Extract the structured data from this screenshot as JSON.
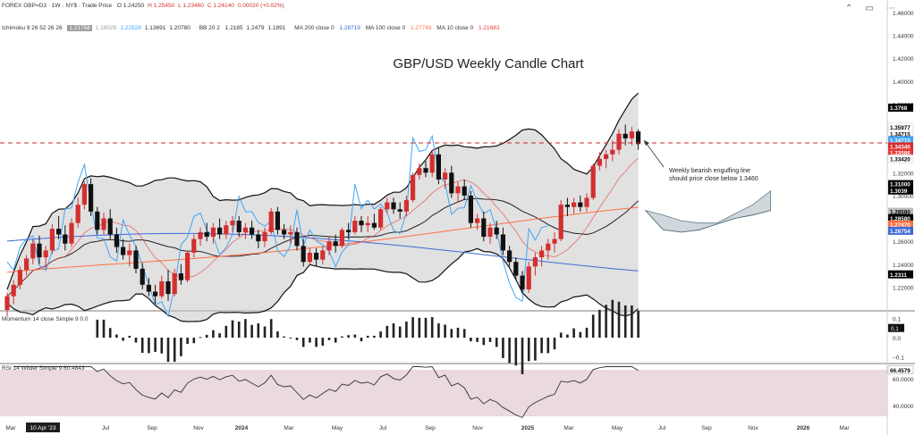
{
  "header": {
    "symbol": "FOREX GBP=D3 · 1W · NY$ · Trade Price",
    "ohlc": [
      {
        "k": "O",
        "v": "1.24250"
      },
      {
        "k": "H",
        "v": "1.25450"
      },
      {
        "k": "L",
        "v": "1.23460"
      },
      {
        "k": "C",
        "v": "1.24140"
      },
      {
        "k": "",
        "v": "0.00020 (+0.02%)"
      }
    ],
    "indicator_label": "Ichimoku 9 26 52 26 26",
    "ichimoku_values": [
      {
        "v": "1.21758",
        "c": "#ffffff",
        "bg": "#9e9e9e"
      },
      {
        "v": "1.18025",
        "c": "#9e9e9e"
      },
      {
        "v": "1.22528",
        "c": "#42a5f5"
      },
      {
        "v": "1.13691",
        "c": "#333333"
      },
      {
        "v": "1.20780",
        "c": "#333333"
      }
    ],
    "bb_label": "BB 20 2",
    "bb_values": [
      "1.2185",
      "1.2479",
      "1.1891"
    ],
    "ma200_label": "MA 200 close 0",
    "ma200_value": "1.28719",
    "ma100_label": "MA 100 close 0",
    "ma100_value": "1.27748",
    "ma10_label": "MA 10 close 0",
    "ma10_value": "1.21683"
  },
  "toolbar": {
    "minimize_icon": "chevron-up-icon",
    "window_icon": "window-icon",
    "more_icon": "more-icon"
  },
  "chart_data": [
    {
      "type": "candlestick",
      "title": "GBP/USD Weekly Candle Chart",
      "annotation": "Weekly bearish engulfing line\nshould price close below 1.3460",
      "ylim": [
        1.2,
        1.46
      ],
      "y_ticks": [
        "1.46000",
        "1.44000",
        "1.42000",
        "1.40000",
        "1.38000",
        "1.36000",
        "1.34000",
        "1.32000",
        "1.30000",
        "1.28000",
        "1.26000",
        "1.24000",
        "1.22000"
      ],
      "resistance_level": 1.346,
      "x_ticks": [
        "Mar",
        "10 Apr '23",
        "Jul",
        "Sep",
        "Nov",
        "2024",
        "Mar",
        "May",
        "Jul",
        "Sep",
        "Nov",
        "2025",
        "Mar",
        "May",
        "Jul",
        "Sep",
        "Nov",
        "2026",
        "Mar"
      ],
      "price_labels": [
        {
          "text": "1.3768",
          "v": 1.3768,
          "bg": "#000000",
          "fg": "#ffffff"
        },
        {
          "text": "1.35977",
          "v": 1.3598,
          "bg": "#ffffff",
          "fg": "#000000"
        },
        {
          "text": "1.34715",
          "v": 1.354,
          "bg": "#ffffff",
          "fg": "#000000"
        },
        {
          "text": "1.34715",
          "v": 1.3485,
          "bg": "#42a5f5",
          "fg": "#ffffff"
        },
        {
          "text": "1.34340",
          "v": 1.343,
          "bg": "#d32f2f",
          "fg": "#ffffff"
        },
        {
          "text": "1.33586",
          "v": 1.3375,
          "bg": "#e53935",
          "fg": "#ffffff"
        },
        {
          "text": "1.33420",
          "v": 1.332,
          "bg": "#ffffff",
          "fg": "#000000"
        },
        {
          "text": "1.31000",
          "v": 1.31,
          "bg": "#000000",
          "fg": "#ffffff"
        },
        {
          "text": "1.3039",
          "v": 1.3045,
          "bg": "#000000",
          "fg": "#ffffff"
        },
        {
          "text": "1.28580",
          "v": 1.2858,
          "bg": "#bdbdbd",
          "fg": "#000000"
        },
        {
          "text": "1.28580",
          "v": 1.2803,
          "bg": "#000000",
          "fg": "#ffffff"
        },
        {
          "text": "1.27470",
          "v": 1.2747,
          "bg": "#ff7043",
          "fg": "#ffffff"
        },
        {
          "text": "1.26754",
          "v": 1.2692,
          "bg": "#3f6ad8",
          "fg": "#ffffff"
        },
        {
          "text": "1.2311",
          "v": 1.2311,
          "bg": "#000000",
          "fg": "#ffffff"
        }
      ],
      "candles": [
        [
          1.2,
          1.215,
          1.194,
          1.212
        ],
        [
          1.212,
          1.226,
          1.205,
          1.222
        ],
        [
          1.222,
          1.238,
          1.218,
          1.235
        ],
        [
          1.235,
          1.248,
          1.23,
          1.245
        ],
        [
          1.245,
          1.262,
          1.24,
          1.258
        ],
        [
          1.258,
          1.265,
          1.24,
          1.246
        ],
        [
          1.246,
          1.256,
          1.236,
          1.252
        ],
        [
          1.252,
          1.275,
          1.249,
          1.271
        ],
        [
          1.271,
          1.282,
          1.262,
          1.266
        ],
        [
          1.266,
          1.274,
          1.252,
          1.258
        ],
        [
          1.258,
          1.28,
          1.255,
          1.276
        ],
        [
          1.276,
          1.298,
          1.272,
          1.292
        ],
        [
          1.292,
          1.312,
          1.288,
          1.31
        ],
        [
          1.31,
          1.315,
          1.282,
          1.286
        ],
        [
          1.286,
          1.29,
          1.266,
          1.27
        ],
        [
          1.27,
          1.285,
          1.266,
          1.28
        ],
        [
          1.28,
          1.288,
          1.262,
          1.266
        ],
        [
          1.266,
          1.272,
          1.25,
          1.255
        ],
        [
          1.255,
          1.262,
          1.244,
          1.248
        ],
        [
          1.248,
          1.258,
          1.238,
          1.252
        ],
        [
          1.252,
          1.256,
          1.232,
          1.236
        ],
        [
          1.236,
          1.241,
          1.218,
          1.222
        ],
        [
          1.222,
          1.228,
          1.212,
          1.216
        ],
        [
          1.216,
          1.222,
          1.205,
          1.212
        ],
        [
          1.212,
          1.23,
          1.21,
          1.225
        ],
        [
          1.225,
          1.235,
          1.208,
          1.214
        ],
        [
          1.214,
          1.236,
          1.212,
          1.232
        ],
        [
          1.232,
          1.24,
          1.222,
          1.226
        ],
        [
          1.226,
          1.252,
          1.224,
          1.25
        ],
        [
          1.25,
          1.266,
          1.246,
          1.262
        ],
        [
          1.262,
          1.272,
          1.256,
          1.268
        ],
        [
          1.268,
          1.276,
          1.26,
          1.264
        ],
        [
          1.264,
          1.276,
          1.258,
          1.272
        ],
        [
          1.272,
          1.28,
          1.262,
          1.266
        ],
        [
          1.266,
          1.278,
          1.262,
          1.274
        ],
        [
          1.274,
          1.282,
          1.268,
          1.278
        ],
        [
          1.278,
          1.282,
          1.264,
          1.268
        ],
        [
          1.268,
          1.276,
          1.262,
          1.272
        ],
        [
          1.272,
          1.278,
          1.262,
          1.266
        ],
        [
          1.266,
          1.27,
          1.254,
          1.26
        ],
        [
          1.26,
          1.272,
          1.255,
          1.268
        ],
        [
          1.268,
          1.289,
          1.266,
          1.286
        ],
        [
          1.286,
          1.29,
          1.266,
          1.27
        ],
        [
          1.27,
          1.275,
          1.262,
          1.266
        ],
        [
          1.266,
          1.274,
          1.258,
          1.268
        ],
        [
          1.268,
          1.272,
          1.252,
          1.256
        ],
        [
          1.256,
          1.262,
          1.238,
          1.242
        ],
        [
          1.242,
          1.254,
          1.24,
          1.25
        ],
        [
          1.25,
          1.254,
          1.238,
          1.244
        ],
        [
          1.244,
          1.256,
          1.24,
          1.252
        ],
        [
          1.252,
          1.264,
          1.248,
          1.26
        ],
        [
          1.26,
          1.266,
          1.25,
          1.256
        ],
        [
          1.256,
          1.272,
          1.254,
          1.27
        ],
        [
          1.27,
          1.276,
          1.262,
          1.268
        ],
        [
          1.268,
          1.282,
          1.266,
          1.278
        ],
        [
          1.278,
          1.282,
          1.268,
          1.274
        ],
        [
          1.274,
          1.282,
          1.268,
          1.276
        ],
        [
          1.276,
          1.284,
          1.27,
          1.272
        ],
        [
          1.272,
          1.29,
          1.27,
          1.288
        ],
        [
          1.288,
          1.298,
          1.284,
          1.294
        ],
        [
          1.294,
          1.298,
          1.284,
          1.288
        ],
        [
          1.288,
          1.294,
          1.28,
          1.286
        ],
        [
          1.286,
          1.3,
          1.282,
          1.296
        ],
        [
          1.296,
          1.32,
          1.294,
          1.318
        ],
        [
          1.318,
          1.328,
          1.314,
          1.324
        ],
        [
          1.324,
          1.33,
          1.316,
          1.32
        ],
        [
          1.32,
          1.34,
          1.316,
          1.336
        ],
        [
          1.336,
          1.342,
          1.31,
          1.314
        ],
        [
          1.314,
          1.324,
          1.306,
          1.32
        ],
        [
          1.32,
          1.326,
          1.298,
          1.302
        ],
        [
          1.302,
          1.312,
          1.294,
          1.308
        ],
        [
          1.308,
          1.314,
          1.296,
          1.3
        ],
        [
          1.3,
          1.304,
          1.272,
          1.276
        ],
        [
          1.276,
          1.284,
          1.27,
          1.28
        ],
        [
          1.28,
          1.286,
          1.26,
          1.264
        ],
        [
          1.264,
          1.276,
          1.258,
          1.272
        ],
        [
          1.272,
          1.278,
          1.262,
          1.266
        ],
        [
          1.266,
          1.272,
          1.248,
          1.252
        ],
        [
          1.252,
          1.256,
          1.238,
          1.242
        ],
        [
          1.242,
          1.246,
          1.226,
          1.23
        ],
        [
          1.23,
          1.234,
          1.214,
          1.218
        ],
        [
          1.218,
          1.242,
          1.215,
          1.238
        ],
        [
          1.238,
          1.25,
          1.23,
          1.246
        ],
        [
          1.246,
          1.256,
          1.238,
          1.252
        ],
        [
          1.252,
          1.262,
          1.244,
          1.258
        ],
        [
          1.258,
          1.268,
          1.25,
          1.262
        ],
        [
          1.262,
          1.296,
          1.26,
          1.292
        ],
        [
          1.292,
          1.298,
          1.282,
          1.29
        ],
        [
          1.29,
          1.298,
          1.284,
          1.294
        ],
        [
          1.294,
          1.3,
          1.286,
          1.29
        ],
        [
          1.29,
          1.302,
          1.286,
          1.298
        ],
        [
          1.298,
          1.328,
          1.296,
          1.326
        ],
        [
          1.326,
          1.338,
          1.322,
          1.332
        ],
        [
          1.332,
          1.34,
          1.324,
          1.336
        ],
        [
          1.336,
          1.348,
          1.33,
          1.34
        ],
        [
          1.34,
          1.358,
          1.336,
          1.354
        ],
        [
          1.354,
          1.362,
          1.344,
          1.35
        ],
        [
          1.35,
          1.36,
          1.344,
          1.356
        ],
        [
          1.356,
          1.358,
          1.34,
          1.345
        ]
      ]
    },
    {
      "type": "bar",
      "title": "Momentum 14 close Simple 9",
      "label_value": "0.0",
      "ylim": [
        -0.12,
        0.12
      ],
      "y_ticks": [
        "0.1",
        "0.0",
        "−0.1"
      ],
      "last_label": "0.1"
    },
    {
      "type": "line",
      "title": "RSI 14 Wilder Simple 9",
      "label_value": "60.4843",
      "ylim": [
        30,
        70
      ],
      "y_ticks": [
        "60.0000",
        "40.0000"
      ],
      "last_label": "66.4579"
    }
  ]
}
